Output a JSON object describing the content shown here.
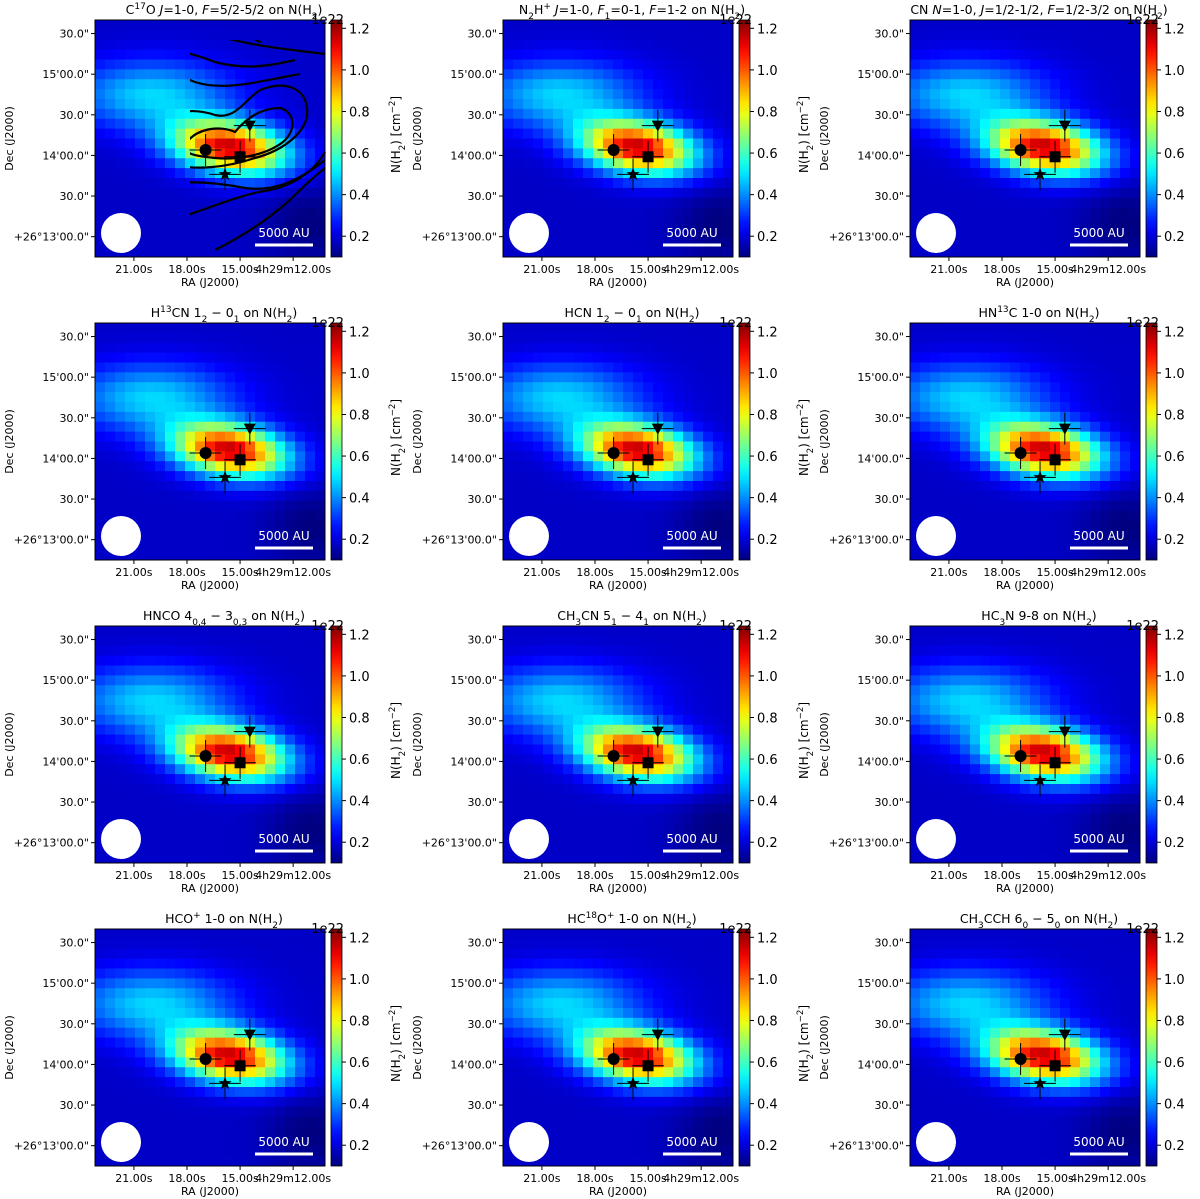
{
  "chart_data": [
    {
      "type": "heatmap",
      "title": "C¹⁷O J=1-0, F=5/2-5/2 on N(H₂)",
      "title_parts": [
        [
          "C",
          ""
        ],
        [
          "17",
          "sup"
        ],
        [
          "O ",
          ""
        ],
        [
          "J",
          "i"
        ],
        [
          "=1-0, ",
          ""
        ],
        [
          "F",
          "i"
        ],
        [
          "=5/2-5/2 on N(H",
          ""
        ],
        [
          "2",
          "sub"
        ],
        [
          ")",
          ""
        ]
      ],
      "contour": "c17o"
    },
    {
      "type": "heatmap",
      "title": "N₂H⁺ J=1-0, F₁=0-1, F=1-2 on N(H₂)",
      "title_parts": [
        [
          "N",
          ""
        ],
        [
          "2",
          "sub"
        ],
        [
          "H",
          ""
        ],
        [
          "+",
          "sup"
        ],
        [
          " ",
          ""
        ],
        [
          "J",
          "i"
        ],
        [
          "=1-0, ",
          ""
        ],
        [
          "F",
          "i"
        ],
        [
          "1",
          "sub"
        ],
        [
          "=0-1, ",
          ""
        ],
        [
          "F",
          "i"
        ],
        [
          "=1-2 on N(H",
          ""
        ],
        [
          "2",
          "sub"
        ],
        [
          ")",
          ""
        ]
      ],
      "contour": "n2h"
    },
    {
      "type": "heatmap",
      "title": "CN N=1-0, J=1/2-1/2, F=1/2-3/2 on N(H₂)",
      "title_parts": [
        [
          "CN ",
          ""
        ],
        [
          "N",
          "i"
        ],
        [
          "=1-0, ",
          ""
        ],
        [
          "J",
          "i"
        ],
        [
          "=1/2-1/2, ",
          ""
        ],
        [
          "F",
          "i"
        ],
        [
          "=1/2-3/2 on N(H",
          ""
        ],
        [
          "2",
          "sub"
        ],
        [
          ")",
          ""
        ]
      ],
      "contour": "cn"
    },
    {
      "type": "heatmap",
      "title": "H¹³CN 1₂ − 0₁ on N(H₂)",
      "title_parts": [
        [
          "H",
          ""
        ],
        [
          "13",
          "sup"
        ],
        [
          "CN 1",
          ""
        ],
        [
          "2",
          "sub"
        ],
        [
          " − 0",
          ""
        ],
        [
          "1",
          "sub"
        ],
        [
          " on N(H",
          ""
        ],
        [
          "2",
          "sub"
        ],
        [
          ")",
          ""
        ]
      ],
      "contour": "h13cn"
    },
    {
      "type": "heatmap",
      "title": "HCN 1₂ − 0₁ on N(H₂)",
      "title_parts": [
        [
          "HCN 1",
          ""
        ],
        [
          "2",
          "sub"
        ],
        [
          " − 0",
          ""
        ],
        [
          "1",
          "sub"
        ],
        [
          " on N(H",
          ""
        ],
        [
          "2",
          "sub"
        ],
        [
          ")",
          ""
        ]
      ],
      "contour": "hcn"
    },
    {
      "type": "heatmap",
      "title": "HN¹³C 1-0 on N(H₂)",
      "title_parts": [
        [
          "HN",
          ""
        ],
        [
          "13",
          "sup"
        ],
        [
          "C 1-0 on N(H",
          ""
        ],
        [
          "2",
          "sub"
        ],
        [
          ")",
          ""
        ]
      ],
      "contour": "hn13c"
    },
    {
      "type": "heatmap",
      "title": "HNCO 4₀,₄ − 3₀,₃ on N(H₂)",
      "title_parts": [
        [
          "HNCO 4",
          ""
        ],
        [
          "0,4",
          "sub"
        ],
        [
          " − 3",
          ""
        ],
        [
          "0,3",
          "sub"
        ],
        [
          " on N(H",
          ""
        ],
        [
          "2",
          "sub"
        ],
        [
          ")",
          ""
        ]
      ],
      "contour": "hnco"
    },
    {
      "type": "heatmap",
      "title": "CH₃CN 5₁ − 4₁ on N(H₂)",
      "title_parts": [
        [
          "CH",
          ""
        ],
        [
          "3",
          "sub"
        ],
        [
          "CN 5",
          ""
        ],
        [
          "1",
          "sub"
        ],
        [
          " − 4",
          ""
        ],
        [
          "1",
          "sub"
        ],
        [
          " on N(H",
          ""
        ],
        [
          "2",
          "sub"
        ],
        [
          ")",
          ""
        ]
      ],
      "contour": "ch3cn"
    },
    {
      "type": "heatmap",
      "title": "HC₃N 9-8 on N(H₂)",
      "title_parts": [
        [
          "HC",
          ""
        ],
        [
          "3",
          "sub"
        ],
        [
          "N 9-8 on N(H",
          ""
        ],
        [
          "2",
          "sub"
        ],
        [
          ")",
          ""
        ]
      ],
      "contour": "hc3n"
    },
    {
      "type": "heatmap",
      "title": "HCO⁺ 1-0 on N(H₂)",
      "title_parts": [
        [
          "HCO",
          ""
        ],
        [
          "+",
          "sup"
        ],
        [
          " 1-0 on N(H",
          ""
        ],
        [
          "2",
          "sub"
        ],
        [
          ")",
          ""
        ]
      ],
      "contour": "hco"
    },
    {
      "type": "heatmap",
      "title": "HC¹⁸O⁺ 1-0 on N(H₂)",
      "title_parts": [
        [
          "HC",
          ""
        ],
        [
          "18",
          "sup"
        ],
        [
          "O",
          ""
        ],
        [
          "+",
          "sup"
        ],
        [
          " 1-0 on N(H",
          ""
        ],
        [
          "2",
          "sub"
        ],
        [
          ")",
          ""
        ]
      ],
      "contour": "hc18o"
    },
    {
      "type": "heatmap",
      "title": "CH₃CCH 6₀ − 5₀ on N(H₂)",
      "title_parts": [
        [
          "CH",
          ""
        ],
        [
          "3",
          "sub"
        ],
        [
          "CCH 6",
          ""
        ],
        [
          "0",
          "sub"
        ],
        [
          " − 5",
          ""
        ],
        [
          "0",
          "sub"
        ],
        [
          " on N(H",
          ""
        ],
        [
          "2",
          "sub"
        ],
        [
          ")",
          ""
        ]
      ],
      "contour": "ch3cch"
    }
  ],
  "axes": {
    "xlabel": "RA (J2000)",
    "ylabel": "Dec (J2000)",
    "xticks": [
      "21.00s",
      "18.00s",
      "15.00s",
      "4h29m12.00s"
    ],
    "xtick_ra_seconds": [
      21,
      18,
      15,
      12
    ],
    "yticks": [
      "30.0\"",
      "15'00.0\"",
      "30.0\"",
      "14'00.0\"",
      "30.0\"",
      "+26°13'00.0\""
    ],
    "ytick_dec_arcsec": [
      930,
      900,
      870,
      840,
      810,
      780
    ],
    "ra_range_seconds": [
      23.2,
      10.2
    ],
    "dec_range_arcsec": [
      765,
      940
    ]
  },
  "colorbar": {
    "label": "N(H₂) [cm⁻²]",
    "label_parts": [
      [
        "N(H",
        ""
      ],
      [
        "2",
        "sub"
      ],
      [
        ") [cm",
        ""
      ],
      [
        "−2",
        "sup"
      ],
      [
        "]",
        ""
      ]
    ],
    "multiplier": "1e22",
    "ticks": [
      0.2,
      0.4,
      0.6,
      0.8,
      1.0,
      1.2
    ],
    "tick_labels": [
      "0.2",
      "0.4",
      "0.6",
      "0.8",
      "1.0",
      "1.2"
    ],
    "range": [
      0.1,
      1.24
    ],
    "colormap": "jet"
  },
  "scalebar": {
    "label": "5000 AU"
  },
  "markers": [
    {
      "shape": "circle",
      "ra": 16.95,
      "dec": 844
    },
    {
      "shape": "square",
      "ra": 15.0,
      "dec": 839
    },
    {
      "shape": "triangle",
      "ra": 14.45,
      "dec": 862
    },
    {
      "shape": "star",
      "ra": 15.85,
      "dec": 826
    }
  ],
  "column_density_peak": {
    "ra": 15.6,
    "dec": 846,
    "value": 1.15
  }
}
